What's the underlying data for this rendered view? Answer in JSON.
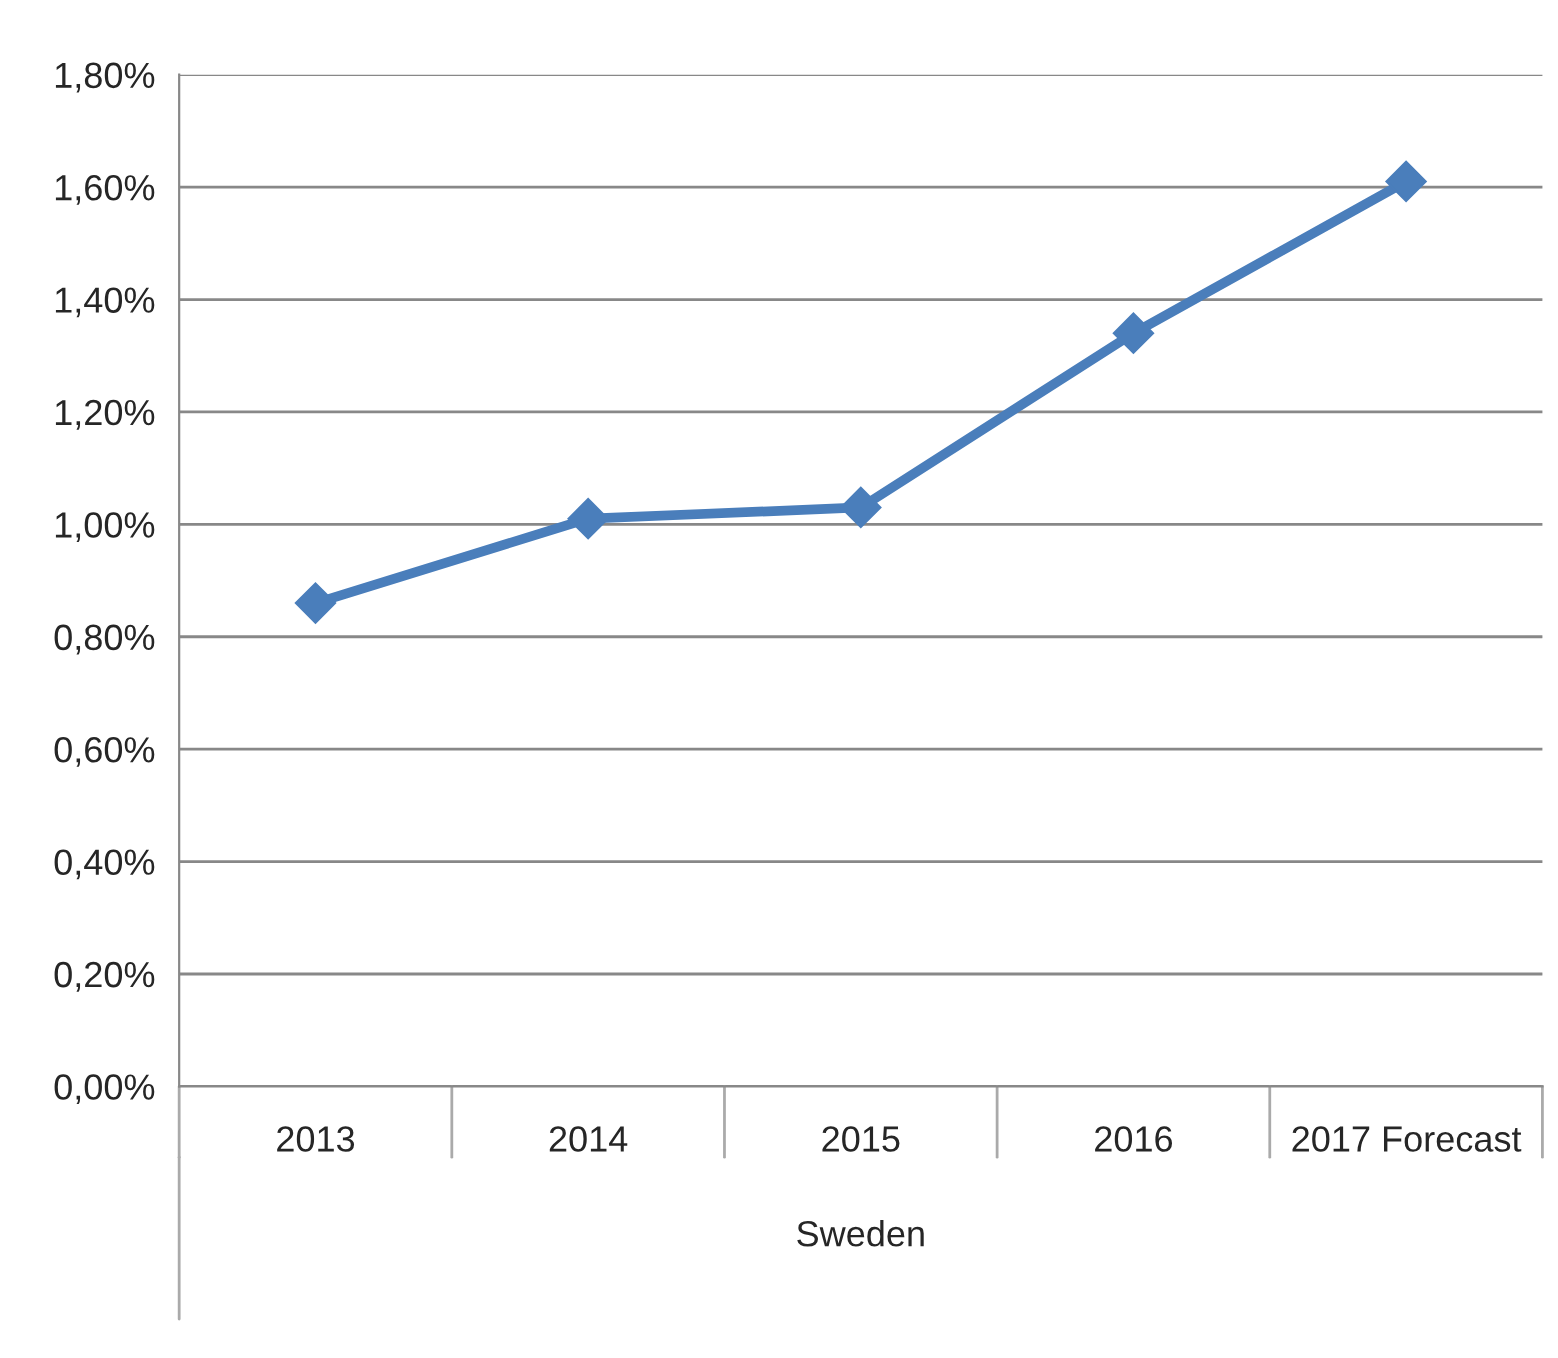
{
  "chart_data": {
    "type": "line",
    "xlabel": "Sweden",
    "categories": [
      "2013",
      "2014",
      "2015",
      "2016",
      "2017 Forecast"
    ],
    "series": [
      {
        "color": "#4a7ebb",
        "values": [
          0.86,
          1.01,
          1.03,
          1.34,
          1.61
        ]
      }
    ],
    "ylim": [
      0,
      1.8
    ],
    "yticks": [
      {
        "value": 0,
        "label": "0,00%"
      },
      {
        "value": 0.2,
        "label": "0,20%"
      },
      {
        "value": 0.4,
        "label": "0,40%"
      },
      {
        "value": 0.6,
        "label": "0,60%"
      },
      {
        "value": 0.8,
        "label": "0,80%"
      },
      {
        "value": 1.0,
        "label": "1,00%"
      },
      {
        "value": 1.2,
        "label": "1,20%"
      },
      {
        "value": 1.4,
        "label": "1,40%"
      },
      {
        "value": 1.6,
        "label": "1,60%"
      },
      {
        "value": 1.8,
        "label": "1,80%"
      }
    ],
    "grid": "y",
    "marker": "diamond",
    "line_style": "solid",
    "legend": false
  }
}
